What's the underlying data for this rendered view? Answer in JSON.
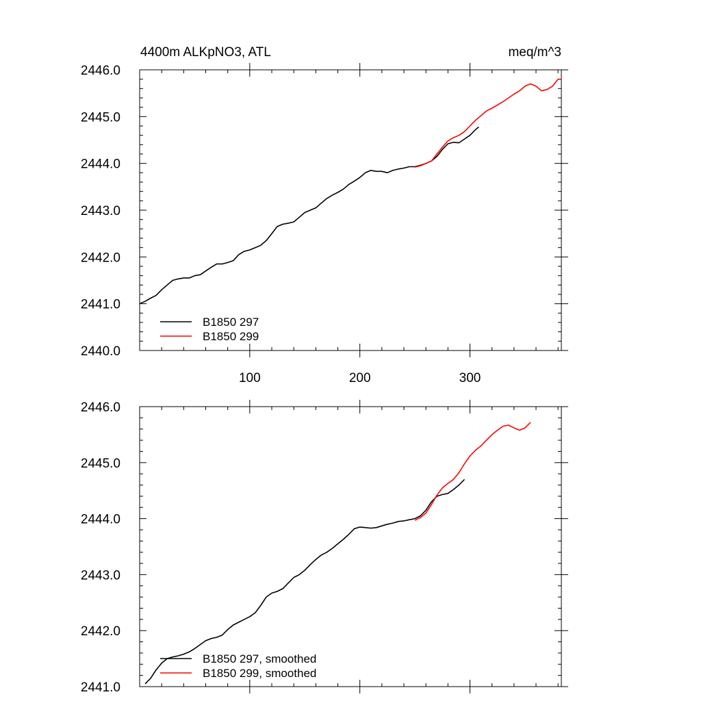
{
  "chart_data": [
    {
      "type": "line",
      "title_left": "4400m ALKpNO3, ATL",
      "title_right": "meq/m^3",
      "xlabel": "",
      "ylabel": "",
      "xlim": [
        0,
        383
      ],
      "ylim": [
        2440.0,
        2446.0
      ],
      "x_ticks": [
        100,
        200,
        300
      ],
      "x_tick_labels": [
        "100",
        "200",
        "300"
      ],
      "y_ticks": [
        2440.0,
        2441.0,
        2442.0,
        2443.0,
        2444.0,
        2445.0,
        2446.0
      ],
      "y_tick_labels": [
        "2440.0",
        "2441.0",
        "2442.0",
        "2443.0",
        "2444.0",
        "2445.0",
        "2446.0"
      ],
      "grid": false,
      "legend_position": "bottom-left",
      "series": [
        {
          "name": "B1850 297",
          "color": "#000000",
          "points": [
            [
              0,
              2441.0
            ],
            [
              5,
              2441.05
            ],
            [
              10,
              2441.12
            ],
            [
              15,
              2441.18
            ],
            [
              20,
              2441.3
            ],
            [
              25,
              2441.4
            ],
            [
              30,
              2441.5
            ],
            [
              35,
              2441.53
            ],
            [
              40,
              2441.55
            ],
            [
              45,
              2441.55
            ],
            [
              50,
              2441.6
            ],
            [
              55,
              2441.62
            ],
            [
              60,
              2441.7
            ],
            [
              65,
              2441.78
            ],
            [
              70,
              2441.85
            ],
            [
              75,
              2441.85
            ],
            [
              80,
              2441.88
            ],
            [
              85,
              2441.92
            ],
            [
              90,
              2442.05
            ],
            [
              95,
              2442.12
            ],
            [
              100,
              2442.15
            ],
            [
              105,
              2442.2
            ],
            [
              110,
              2442.25
            ],
            [
              115,
              2442.35
            ],
            [
              120,
              2442.5
            ],
            [
              125,
              2442.65
            ],
            [
              130,
              2442.7
            ],
            [
              135,
              2442.72
            ],
            [
              140,
              2442.75
            ],
            [
              145,
              2442.85
            ],
            [
              150,
              2442.95
            ],
            [
              155,
              2443.0
            ],
            [
              160,
              2443.05
            ],
            [
              165,
              2443.15
            ],
            [
              170,
              2443.25
            ],
            [
              175,
              2443.32
            ],
            [
              180,
              2443.38
            ],
            [
              185,
              2443.45
            ],
            [
              190,
              2443.55
            ],
            [
              195,
              2443.62
            ],
            [
              200,
              2443.7
            ],
            [
              205,
              2443.8
            ],
            [
              210,
              2443.85
            ],
            [
              215,
              2443.83
            ],
            [
              220,
              2443.83
            ],
            [
              225,
              2443.8
            ],
            [
              230,
              2443.85
            ],
            [
              235,
              2443.88
            ],
            [
              240,
              2443.9
            ],
            [
              245,
              2443.93
            ],
            [
              250,
              2443.93
            ],
            [
              255,
              2443.96
            ],
            [
              260,
              2444.0
            ],
            [
              265,
              2444.05
            ],
            [
              270,
              2444.15
            ],
            [
              275,
              2444.3
            ],
            [
              280,
              2444.42
            ],
            [
              285,
              2444.45
            ],
            [
              290,
              2444.44
            ],
            [
              295,
              2444.52
            ],
            [
              300,
              2444.6
            ],
            [
              305,
              2444.72
            ],
            [
              308,
              2444.78
            ]
          ]
        },
        {
          "name": "B1850 299",
          "color": "#ff0000",
          "points": [
            [
              250,
              2443.92
            ],
            [
              255,
              2443.95
            ],
            [
              260,
              2444.0
            ],
            [
              265,
              2444.05
            ],
            [
              270,
              2444.2
            ],
            [
              275,
              2444.35
            ],
            [
              280,
              2444.48
            ],
            [
              285,
              2444.55
            ],
            [
              290,
              2444.6
            ],
            [
              295,
              2444.68
            ],
            [
              300,
              2444.8
            ],
            [
              305,
              2444.92
            ],
            [
              310,
              2445.02
            ],
            [
              315,
              2445.12
            ],
            [
              320,
              2445.18
            ],
            [
              325,
              2445.25
            ],
            [
              330,
              2445.32
            ],
            [
              335,
              2445.4
            ],
            [
              340,
              2445.48
            ],
            [
              345,
              2445.55
            ],
            [
              350,
              2445.65
            ],
            [
              355,
              2445.7
            ],
            [
              360,
              2445.65
            ],
            [
              365,
              2445.55
            ],
            [
              370,
              2445.58
            ],
            [
              375,
              2445.65
            ],
            [
              380,
              2445.8
            ],
            [
              383,
              2445.8
            ]
          ]
        }
      ]
    },
    {
      "type": "line",
      "title_left": "",
      "title_right": "",
      "xlabel": "",
      "ylabel": "",
      "xlim": [
        0,
        383
      ],
      "ylim": [
        2441.0,
        2446.0
      ],
      "x_ticks": [
        100,
        200,
        300
      ],
      "x_tick_labels": [
        "",
        "",
        ""
      ],
      "y_ticks": [
        2441.0,
        2442.0,
        2443.0,
        2444.0,
        2445.0,
        2446.0
      ],
      "y_tick_labels": [
        "2441.0",
        "2442.0",
        "2443.0",
        "2444.0",
        "2445.0",
        "2446.0"
      ],
      "grid": false,
      "legend_position": "bottom-left",
      "series": [
        {
          "name": "B1850 297, smoothed",
          "color": "#000000",
          "points": [
            [
              5,
              2441.05
            ],
            [
              10,
              2441.15
            ],
            [
              15,
              2441.3
            ],
            [
              20,
              2441.42
            ],
            [
              25,
              2441.5
            ],
            [
              30,
              2441.53
            ],
            [
              35,
              2441.55
            ],
            [
              40,
              2441.58
            ],
            [
              45,
              2441.62
            ],
            [
              50,
              2441.68
            ],
            [
              55,
              2441.75
            ],
            [
              60,
              2441.82
            ],
            [
              65,
              2441.86
            ],
            [
              70,
              2441.88
            ],
            [
              75,
              2441.92
            ],
            [
              80,
              2442.02
            ],
            [
              85,
              2442.1
            ],
            [
              90,
              2442.15
            ],
            [
              95,
              2442.2
            ],
            [
              100,
              2442.25
            ],
            [
              105,
              2442.32
            ],
            [
              110,
              2442.45
            ],
            [
              115,
              2442.6
            ],
            [
              120,
              2442.67
            ],
            [
              125,
              2442.7
            ],
            [
              130,
              2442.75
            ],
            [
              135,
              2442.85
            ],
            [
              140,
              2442.95
            ],
            [
              145,
              2443.0
            ],
            [
              150,
              2443.08
            ],
            [
              155,
              2443.18
            ],
            [
              160,
              2443.27
            ],
            [
              165,
              2443.35
            ],
            [
              170,
              2443.4
            ],
            [
              175,
              2443.47
            ],
            [
              180,
              2443.55
            ],
            [
              185,
              2443.63
            ],
            [
              190,
              2443.72
            ],
            [
              195,
              2443.82
            ],
            [
              200,
              2443.85
            ],
            [
              205,
              2443.84
            ],
            [
              210,
              2443.83
            ],
            [
              215,
              2443.84
            ],
            [
              220,
              2443.87
            ],
            [
              225,
              2443.9
            ],
            [
              230,
              2443.92
            ],
            [
              235,
              2443.95
            ],
            [
              240,
              2443.96
            ],
            [
              245,
              2443.98
            ],
            [
              250,
              2444.0
            ],
            [
              255,
              2444.05
            ],
            [
              260,
              2444.15
            ],
            [
              265,
              2444.3
            ],
            [
              270,
              2444.4
            ],
            [
              275,
              2444.43
            ],
            [
              280,
              2444.45
            ],
            [
              285,
              2444.52
            ],
            [
              290,
              2444.6
            ],
            [
              295,
              2444.7
            ]
          ]
        },
        {
          "name": "B1850 299, smoothed",
          "color": "#ff0000",
          "points": [
            [
              250,
              2443.97
            ],
            [
              255,
              2444.02
            ],
            [
              260,
              2444.1
            ],
            [
              265,
              2444.25
            ],
            [
              270,
              2444.42
            ],
            [
              275,
              2444.55
            ],
            [
              280,
              2444.63
            ],
            [
              285,
              2444.7
            ],
            [
              290,
              2444.82
            ],
            [
              295,
              2444.98
            ],
            [
              300,
              2445.12
            ],
            [
              305,
              2445.22
            ],
            [
              310,
              2445.3
            ],
            [
              315,
              2445.4
            ],
            [
              320,
              2445.5
            ],
            [
              325,
              2445.58
            ],
            [
              330,
              2445.65
            ],
            [
              335,
              2445.67
            ],
            [
              340,
              2445.62
            ],
            [
              345,
              2445.58
            ],
            [
              350,
              2445.62
            ],
            [
              355,
              2445.72
            ]
          ]
        }
      ]
    }
  ]
}
